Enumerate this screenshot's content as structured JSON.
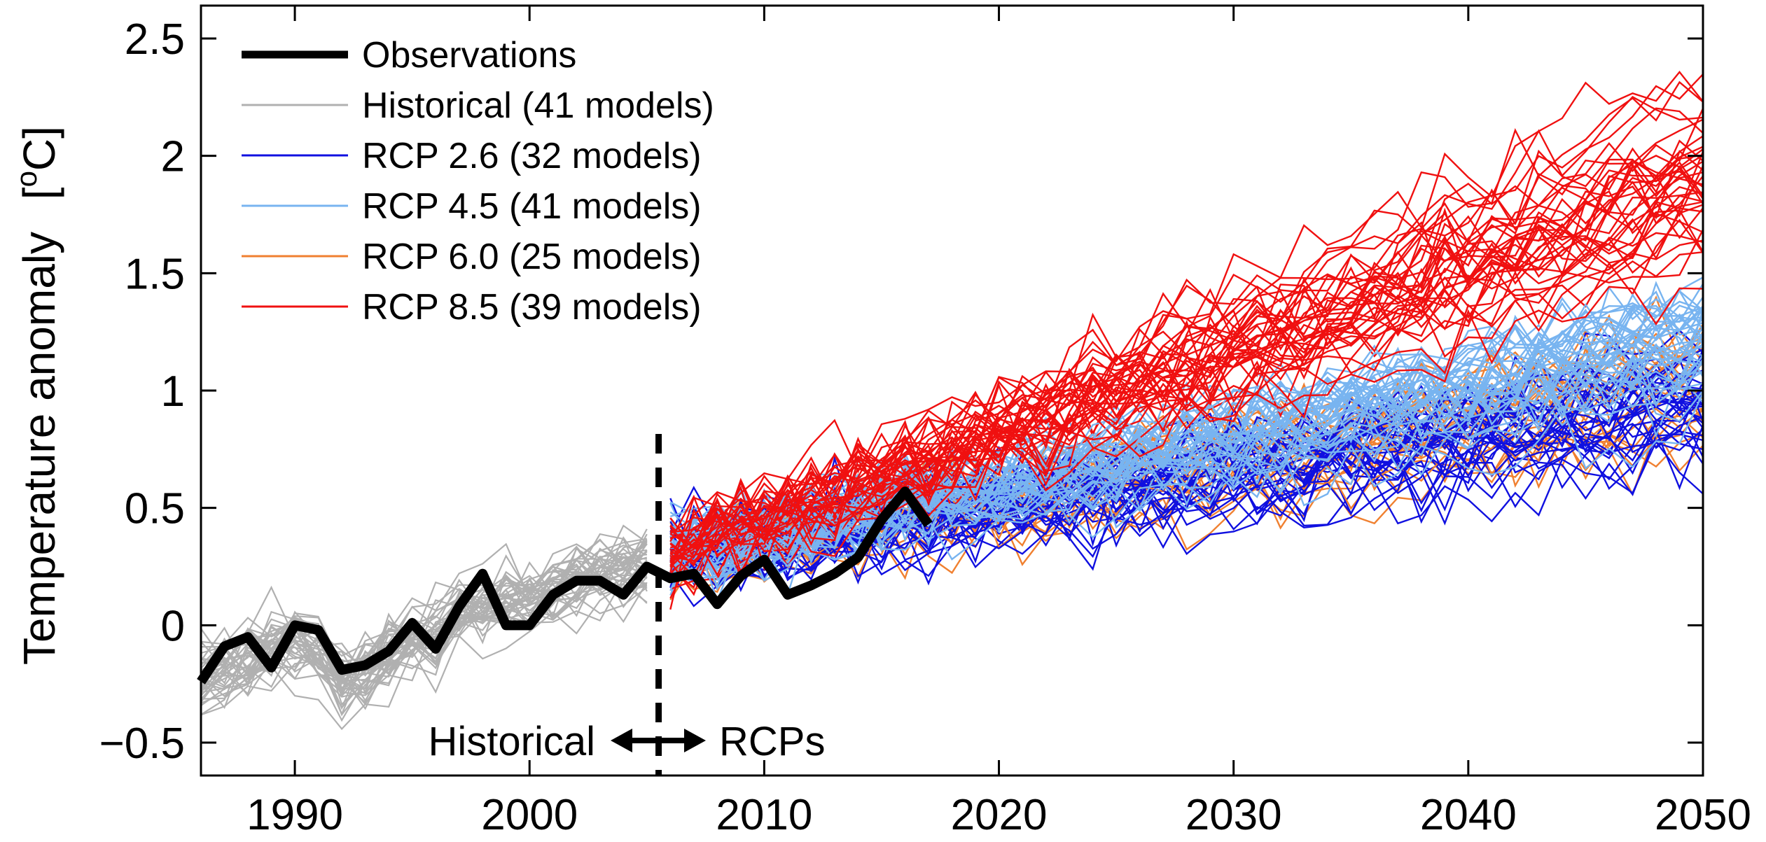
{
  "chart_data": {
    "type": "line",
    "xlim": [
      1986,
      2050
    ],
    "ylim": [
      -0.64,
      2.64
    ],
    "xticks": [
      1990,
      2000,
      2010,
      2020,
      2030,
      2040,
      2050
    ],
    "yticks": [
      -0.5,
      0,
      0.5,
      1,
      1.5,
      2,
      2.5
    ],
    "ytick_labels": [
      "−0.5",
      "0",
      "0.5",
      "1",
      "1.5",
      "2",
      "2.5"
    ],
    "xlabel": "",
    "ylabel": "Temperature anomaly",
    "ylabel_unit": "[",
    "ylabel_unit_sup": "o",
    "ylabel_unit_end": "C]",
    "grid": false,
    "legend_position": "top-left",
    "split_year": 2005.5,
    "annotations": {
      "left": "Historical",
      "right": "RCPs"
    },
    "series": [
      {
        "name": "Observations",
        "key": "obs",
        "color": "#000000",
        "count": 1,
        "x": [
          1986,
          1987,
          1988,
          1989,
          1990,
          1991,
          1992,
          1993,
          1994,
          1995,
          1996,
          1997,
          1998,
          1999,
          2000,
          2001,
          2002,
          2003,
          2004,
          2005,
          2006,
          2007,
          2008,
          2009,
          2010,
          2011,
          2012,
          2013,
          2014,
          2015,
          2016,
          2017
        ],
        "values": [
          -0.24,
          -0.09,
          -0.05,
          -0.18,
          0.0,
          -0.02,
          -0.19,
          -0.17,
          -0.11,
          0.01,
          -0.1,
          0.08,
          0.22,
          0.0,
          0.0,
          0.13,
          0.19,
          0.19,
          0.13,
          0.25,
          0.2,
          0.22,
          0.09,
          0.21,
          0.28,
          0.13,
          0.17,
          0.22,
          0.29,
          0.45,
          0.57,
          0.43
        ]
      },
      {
        "name": "Historical (41 models)",
        "key": "hist",
        "color": "#b0b0b0",
        "count": 41,
        "start_year": 1986,
        "end_year": 2005,
        "ensemble_mean": [
          -0.22,
          -0.18,
          -0.13,
          -0.1,
          -0.06,
          -0.09,
          -0.25,
          -0.2,
          -0.12,
          -0.05,
          -0.02,
          0.05,
          0.1,
          0.1,
          0.13,
          0.16,
          0.2,
          0.23,
          0.25,
          0.27
        ]
      },
      {
        "name": "RCP 2.6 (32 models)",
        "key": "rcp26",
        "color": "#1010e0",
        "count": 32,
        "start_year": 2006,
        "end_year": 2050,
        "ensemble_mean_2006": 0.3,
        "ensemble_mean_2050": 0.95
      },
      {
        "name": "RCP 4.5 (41 models)",
        "key": "rcp45",
        "color": "#78b4f0",
        "count": 41,
        "start_year": 2006,
        "end_year": 2050,
        "ensemble_mean_2006": 0.3,
        "ensemble_mean_2050": 1.25
      },
      {
        "name": "RCP 6.0 (25 models)",
        "key": "rcp60",
        "color": "#f08030",
        "count": 25,
        "start_year": 2006,
        "end_year": 2050,
        "ensemble_mean_2006": 0.3,
        "ensemble_mean_2050": 1.05
      },
      {
        "name": "RCP 8.5 (39 models)",
        "key": "rcp85",
        "color": "#f01010",
        "count": 39,
        "start_year": 2006,
        "end_year": 2050,
        "ensemble_mean_2006": 0.3,
        "ensemble_mean_2050": 1.9
      }
    ]
  }
}
